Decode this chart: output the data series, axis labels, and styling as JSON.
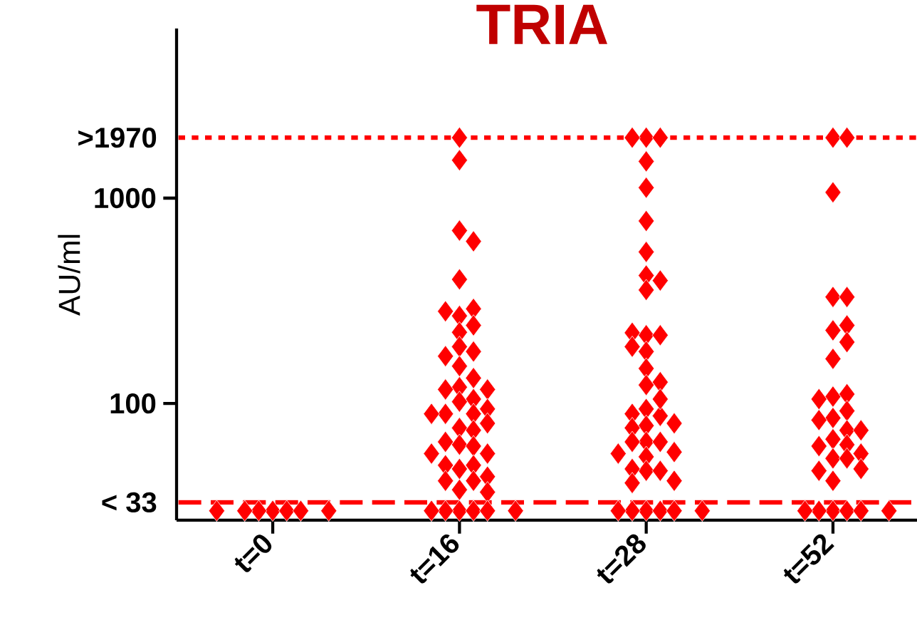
{
  "chart_data": {
    "type": "scatter",
    "title": "TRIA",
    "ylabel": "AU/ml",
    "log": "y",
    "marker": "diamond",
    "categories": [
      "t=0",
      "t=16",
      "t=28",
      "t=52"
    ],
    "ylim": [
      27,
      6700
    ],
    "yticks": [
      100,
      1000
    ],
    "ref_lines": [
      {
        "axis": "y",
        "value": 1970,
        "label": ">1970",
        "line_style": "dotted",
        "color": "#ff0000"
      },
      {
        "axis": "y",
        "value": 33,
        "label": "< 33",
        "line_style": "dashed",
        "color": "#ff0000"
      }
    ],
    "series": [
      {
        "color": "#ff0000",
        "x": [
          "t=0",
          "t=0",
          "t=0",
          "t=0",
          "t=0",
          "t=0",
          "t=0"
        ],
        "values": [
          30,
          30,
          30,
          30,
          30,
          30,
          30
        ]
      },
      {
        "color": "#ff0000",
        "x": [
          "t=16",
          "t=16",
          "t=16",
          "t=16",
          "t=16",
          "t=16",
          "t=16",
          "t=16",
          "t=16",
          "t=16",
          "t=16",
          "t=16",
          "t=16",
          "t=16",
          "t=16",
          "t=16",
          "t=16",
          "t=16",
          "t=16",
          "t=16",
          "t=16",
          "t=16",
          "t=16",
          "t=16",
          "t=16",
          "t=16",
          "t=16",
          "t=16",
          "t=16",
          "t=16",
          "t=16",
          "t=16",
          "t=16",
          "t=16",
          "t=16",
          "t=16",
          "t=16",
          "t=16",
          "t=16",
          "t=16",
          "t=16",
          "t=16",
          "t=16",
          "t=16",
          "t=16",
          "t=16"
        ],
        "values": [
          1970,
          1530,
          695,
          616,
          402,
          267,
          289,
          281,
          240,
          222,
          189,
          179,
          170,
          152,
          133,
          120,
          117,
          117,
          105,
          102,
          89,
          89,
          94,
          89,
          76,
          80,
          74,
          63,
          65,
          62,
          57,
          57,
          48,
          50,
          50,
          42,
          42,
          44,
          38,
          37,
          30,
          30,
          30,
          30,
          30,
          30
        ]
      },
      {
        "color": "#ff0000",
        "x": [
          "t=28",
          "t=28",
          "t=28",
          "t=28",
          "t=28",
          "t=28",
          "t=28",
          "t=28",
          "t=28",
          "t=28",
          "t=28",
          "t=28",
          "t=28",
          "t=28",
          "t=28",
          "t=28",
          "t=28",
          "t=28",
          "t=28",
          "t=28",
          "t=28",
          "t=28",
          "t=28",
          "t=28",
          "t=28",
          "t=28",
          "t=28",
          "t=28",
          "t=28",
          "t=28",
          "t=28",
          "t=28",
          "t=28",
          "t=28",
          "t=28",
          "t=28",
          "t=28",
          "t=28",
          "t=28",
          "t=28",
          "t=28",
          "t=28"
        ],
        "values": [
          1970,
          1970,
          1970,
          1510,
          1124,
          774,
          547,
          420,
          397,
          357,
          215,
          215,
          221,
          189,
          179,
          148,
          123,
          127,
          94,
          87,
          105,
          89,
          78,
          76,
          80,
          65,
          65,
          65,
          55,
          58,
          57,
          47,
          47,
          48,
          42,
          41,
          30,
          30,
          30,
          30,
          30,
          30
        ]
      },
      {
        "color": "#ff0000",
        "x": [
          "t=52",
          "t=52",
          "t=52",
          "t=52",
          "t=52",
          "t=52",
          "t=52",
          "t=52",
          "t=52",
          "t=52",
          "t=52",
          "t=52",
          "t=52",
          "t=52",
          "t=52",
          "t=52",
          "t=52",
          "t=52",
          "t=52",
          "t=52",
          "t=52",
          "t=52",
          "t=52",
          "t=52",
          "t=52",
          "t=52",
          "t=52",
          "t=52",
          "t=52",
          "t=52",
          "t=52",
          "t=52"
        ],
        "values": [
          1970,
          1970,
          1067,
          330,
          330,
          227,
          240,
          199,
          165,
          108,
          111,
          105,
          85,
          92,
          83,
          74,
          74,
          67,
          63,
          62,
          54,
          54,
          57,
          47,
          48,
          42,
          30,
          30,
          30,
          30,
          30,
          30
        ]
      }
    ]
  }
}
